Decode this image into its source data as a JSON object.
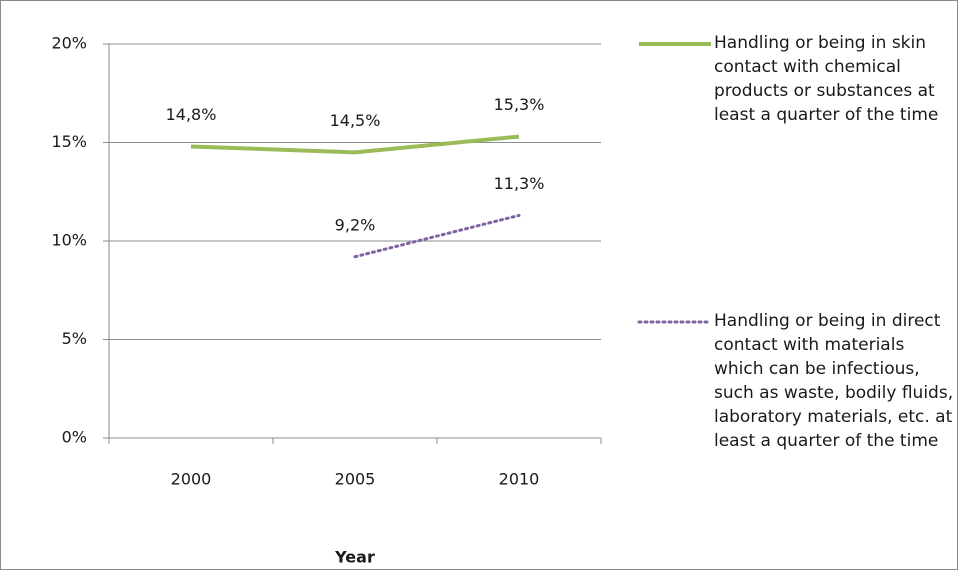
{
  "chart_data": {
    "type": "line",
    "x_label": "Year",
    "categories": [
      "2000",
      "2005",
      "2010"
    ],
    "series": [
      {
        "name": "Handling or being in skin contact with chemical products or substances at least a quarter of the time",
        "color": "#9bbb59",
        "style": "solid",
        "values": [
          14.8,
          14.5,
          15.3
        ],
        "value_labels": [
          "14,8%",
          "14,5%",
          "15,3%"
        ]
      },
      {
        "name": "Handling or being in direct contact with materials which can be infectious, such as waste, bodily fluids, laboratory materials, etc. at least a quarter of the time",
        "color": "#8064a2",
        "style": "dotted",
        "values": [
          null,
          9.2,
          11.3
        ],
        "value_labels": [
          null,
          "9,2%",
          "11,3%"
        ]
      }
    ],
    "ylim": [
      0,
      20
    ],
    "yticks": [
      {
        "value": 0,
        "label": "0%"
      },
      {
        "value": 5,
        "label": "5%"
      },
      {
        "value": 10,
        "label": "10%"
      },
      {
        "value": 15,
        "label": "15%"
      },
      {
        "value": 20,
        "label": "20%"
      }
    ],
    "grid": true,
    "legend": "right"
  }
}
